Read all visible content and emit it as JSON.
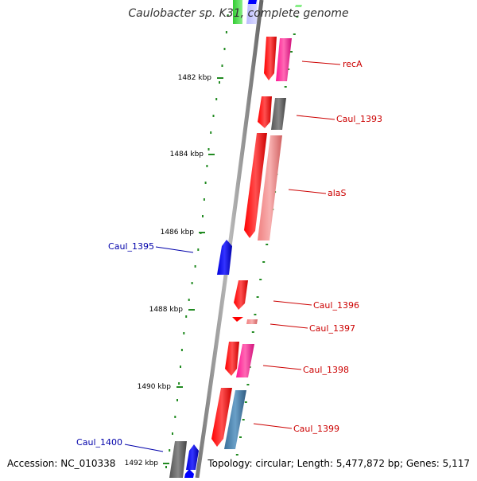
{
  "title": "Caulobacter sp. K31, complete genome",
  "footer": {
    "accession": "Accession: NC_010338",
    "topology": "Topology: circular; Length: 5,477,872 bp; Genes: 5,117"
  },
  "ticks": [
    {
      "label": "1482 kbp"
    },
    {
      "label": "1484 kbp"
    },
    {
      "label": "1486 kbp"
    },
    {
      "label": "1488 kbp"
    },
    {
      "label": "1490 kbp"
    },
    {
      "label": "1492 kbp"
    }
  ],
  "genes": [
    {
      "label": "recA",
      "color": "#cc0000"
    },
    {
      "label": "Caul_1393",
      "color": "#cc0000"
    },
    {
      "label": "alaS",
      "color": "#cc0000"
    },
    {
      "label": "Caul_1395",
      "color": "#0000aa"
    },
    {
      "label": "Caul_1396",
      "color": "#cc0000"
    },
    {
      "label": "Caul_1397",
      "color": "#cc0000"
    },
    {
      "label": "Caul_1398",
      "color": "#cc0000"
    },
    {
      "label": "Caul_1399",
      "color": "#cc0000"
    },
    {
      "label": "Caul_1400",
      "color": "#0000aa"
    }
  ],
  "colors": {
    "backbone": "#8c8c8c",
    "cds_forward": "#ff0000",
    "cds_reverse": "#0000ff",
    "gene_forward": "#f08080",
    "gene_pink": "#ff3399",
    "gene_gray": "#666666",
    "gene_steel": "#4682b4",
    "gene_green": "#33cc33",
    "gene_lavender": "#ccccff",
    "tick": "#228b22",
    "dots": "#228b22"
  }
}
